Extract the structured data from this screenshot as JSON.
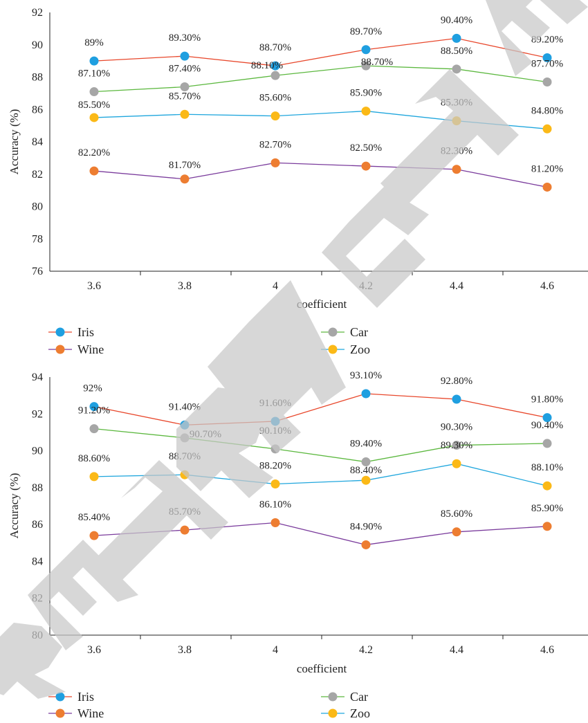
{
  "chart_data": [
    {
      "type": "line",
      "xlabel": "coefficient",
      "ylabel": "Accuracy (%)",
      "categories": [
        "3.6",
        "3.8",
        "4",
        "4.2",
        "4.4",
        "4.6"
      ],
      "ylim": [
        76,
        92
      ],
      "yticks": [
        76,
        78,
        80,
        82,
        84,
        86,
        88,
        90,
        92
      ],
      "legend_position": "bottom",
      "series": [
        {
          "name": "Iris",
          "line_color": "#e8472b",
          "marker_color": "#1f9fe0",
          "values": [
            89,
            89.3,
            88.7,
            89.7,
            90.4,
            89.2
          ],
          "labels": [
            "89%",
            "89.30%",
            "88.70%",
            "89.70%",
            "90.40%",
            "89.20%"
          ]
        },
        {
          "name": "Car",
          "line_color": "#5cb83f",
          "marker_color": "#a6a6a6",
          "values": [
            87.1,
            87.4,
            88.1,
            88.7,
            88.5,
            87.7
          ],
          "labels": [
            "87.10%",
            "87.40%",
            "88.10%",
            "88.70%",
            "88.50%",
            "87.70%"
          ]
        },
        {
          "name": "Zoo",
          "line_color": "#1fa6dd",
          "marker_color": "#fbb917",
          "values": [
            85.5,
            85.7,
            85.6,
            85.9,
            85.3,
            84.8
          ],
          "labels": [
            "85.50%",
            "85.70%",
            "85.60%",
            "85.90%",
            "85.30%",
            "84.80%"
          ]
        },
        {
          "name": "Wine",
          "line_color": "#7a3b9c",
          "marker_color": "#ed7d31",
          "values": [
            82.2,
            81.7,
            82.7,
            82.5,
            82.3,
            81.2
          ],
          "labels": [
            "82.20%",
            "81.70%",
            "82.70%",
            "82.50%",
            "82.30%",
            "81.20%"
          ]
        }
      ]
    },
    {
      "type": "line",
      "xlabel": "coefficient",
      "ylabel": "Accuracy (%)",
      "categories": [
        "3.6",
        "3.8",
        "4",
        "4.2",
        "4.4",
        "4.6"
      ],
      "ylim": [
        80,
        94
      ],
      "yticks": [
        80,
        82,
        84,
        86,
        88,
        90,
        92,
        94
      ],
      "legend_position": "bottom",
      "series": [
        {
          "name": "Iris",
          "line_color": "#e8472b",
          "marker_color": "#1f9fe0",
          "values": [
            92.4,
            91.4,
            91.6,
            93.1,
            92.8,
            91.8
          ],
          "labels": [
            "92%",
            "91.40%",
            "91.60%",
            "93.10%",
            "92.80%",
            "91.80%"
          ]
        },
        {
          "name": "Car",
          "line_color": "#5cb83f",
          "marker_color": "#a6a6a6",
          "values": [
            91.2,
            90.7,
            90.1,
            89.4,
            90.3,
            90.4
          ],
          "labels": [
            "91.20%",
            "90.70%",
            "90.10%",
            "89.40%",
            "90.30%",
            "90.40%"
          ]
        },
        {
          "name": "Zoo",
          "line_color": "#1fa6dd",
          "marker_color": "#fbb917",
          "values": [
            88.6,
            88.7,
            88.2,
            88.4,
            89.3,
            88.1
          ],
          "labels": [
            "88.60%",
            "88.70%",
            "88.20%",
            "88.40%",
            "89.30%",
            "88.10%"
          ]
        },
        {
          "name": "Wine",
          "line_color": "#7a3b9c",
          "marker_color": "#ed7d31",
          "values": [
            85.4,
            85.7,
            86.1,
            84.9,
            85.6,
            85.9
          ],
          "labels": [
            "85.40%",
            "85.70%",
            "86.10%",
            "84.90%",
            "85.60%",
            "85.90%"
          ]
        }
      ]
    }
  ],
  "legend_order": [
    "Iris",
    "Car",
    "Wine",
    "Zoo"
  ],
  "watermark_color": "#c8c8c8",
  "watermark_text": "RETRACTED"
}
